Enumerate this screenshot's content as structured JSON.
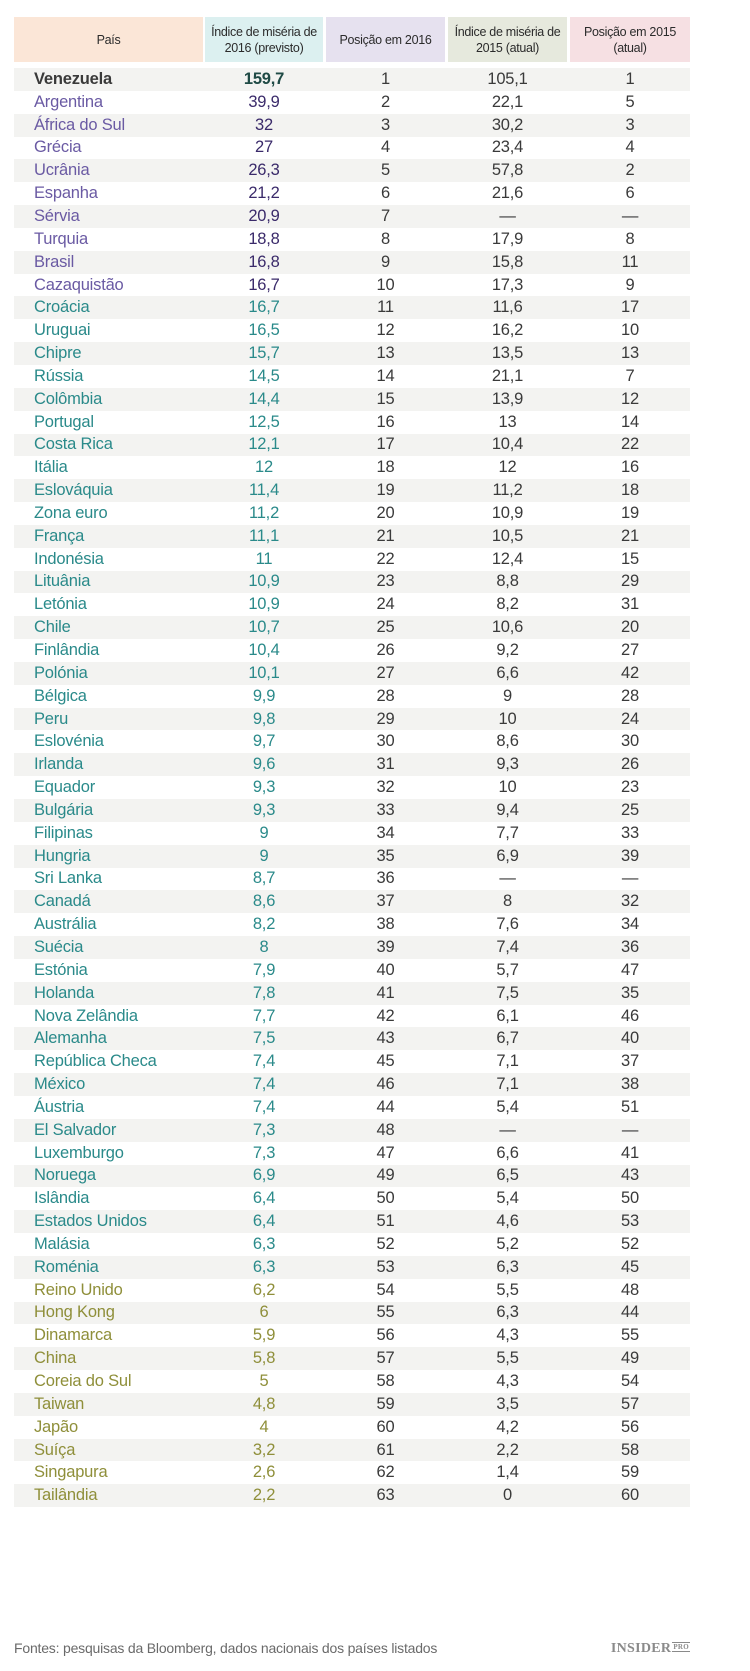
{
  "header": {
    "columns": [
      {
        "label": "País",
        "bg": "#fbe6d7"
      },
      {
        "label": "Índice de miséria de 2016 (previsto)",
        "bg": "#dcf0f0"
      },
      {
        "label": "Posição em 2016",
        "bg": "#e6e1ef"
      },
      {
        "label": "Índice de miséria de 2015 (atual)",
        "bg": "#e6e9dd"
      },
      {
        "label": "Posição em 2015 (atual)",
        "bg": "#f6e0e3"
      }
    ]
  },
  "colors": {
    "venezuela": "#3a3a3a",
    "venezuela_value": "#1f4a45",
    "purple_name": "#6a5aa3",
    "purple_value": "#3a2a6a",
    "teal": "#2a8a8a",
    "olive": "#8f8f3a",
    "neutral": "#3a3a3a"
  },
  "rows": [
    {
      "country": "Venezuela",
      "idx2016": "159,7",
      "pos2016": "1",
      "idx2015": "105,1",
      "pos2015": "1",
      "group": "top"
    },
    {
      "country": "Argentina",
      "idx2016": "39,9",
      "pos2016": "2",
      "idx2015": "22,1",
      "pos2015": "5",
      "group": "purple"
    },
    {
      "country": "África do Sul",
      "idx2016": "32",
      "pos2016": "3",
      "idx2015": "30,2",
      "pos2015": "3",
      "group": "purple"
    },
    {
      "country": "Grécia",
      "idx2016": "27",
      "pos2016": "4",
      "idx2015": "23,4",
      "pos2015": "4",
      "group": "purple"
    },
    {
      "country": "Ucrânia",
      "idx2016": "26,3",
      "pos2016": "5",
      "idx2015": "57,8",
      "pos2015": "2",
      "group": "purple"
    },
    {
      "country": "Espanha",
      "idx2016": "21,2",
      "pos2016": "6",
      "idx2015": "21,6",
      "pos2015": "6",
      "group": "purple"
    },
    {
      "country": "Sérvia",
      "idx2016": "20,9",
      "pos2016": "7",
      "idx2015": "—",
      "pos2015": "—",
      "group": "purple"
    },
    {
      "country": "Turquia",
      "idx2016": "18,8",
      "pos2016": "8",
      "idx2015": "17,9",
      "pos2015": "8",
      "group": "purple"
    },
    {
      "country": "Brasil",
      "idx2016": "16,8",
      "pos2016": "9",
      "idx2015": "15,8",
      "pos2015": "11",
      "group": "purple"
    },
    {
      "country": "Cazaquistão",
      "idx2016": "16,7",
      "pos2016": "10",
      "idx2015": "17,3",
      "pos2015": "9",
      "group": "purple"
    },
    {
      "country": "Croácia",
      "idx2016": "16,7",
      "pos2016": "11",
      "idx2015": "11,6",
      "pos2015": "17",
      "group": "teal"
    },
    {
      "country": "Uruguai",
      "idx2016": "16,5",
      "pos2016": "12",
      "idx2015": "16,2",
      "pos2015": "10",
      "group": "teal"
    },
    {
      "country": "Chipre",
      "idx2016": "15,7",
      "pos2016": "13",
      "idx2015": "13,5",
      "pos2015": "13",
      "group": "teal"
    },
    {
      "country": "Rússia",
      "idx2016": "14,5",
      "pos2016": "14",
      "idx2015": "21,1",
      "pos2015": "7",
      "group": "teal"
    },
    {
      "country": "Colômbia",
      "idx2016": "14,4",
      "pos2016": "15",
      "idx2015": "13,9",
      "pos2015": "12",
      "group": "teal"
    },
    {
      "country": "Portugal",
      "idx2016": "12,5",
      "pos2016": "16",
      "idx2015": "13",
      "pos2015": "14",
      "group": "teal"
    },
    {
      "country": "Costa Rica",
      "idx2016": "12,1",
      "pos2016": "17",
      "idx2015": "10,4",
      "pos2015": "22",
      "group": "teal"
    },
    {
      "country": "Itália",
      "idx2016": "12",
      "pos2016": "18",
      "idx2015": "12",
      "pos2015": "16",
      "group": "teal"
    },
    {
      "country": "Eslováquia",
      "idx2016": "11,4",
      "pos2016": "19",
      "idx2015": "11,2",
      "pos2015": "18",
      "group": "teal"
    },
    {
      "country": "Zona euro",
      "idx2016": "11,2",
      "pos2016": "20",
      "idx2015": "10,9",
      "pos2015": "19",
      "group": "teal"
    },
    {
      "country": "França",
      "idx2016": "11,1",
      "pos2016": "21",
      "idx2015": "10,5",
      "pos2015": "21",
      "group": "teal"
    },
    {
      "country": "Indonésia",
      "idx2016": "11",
      "pos2016": "22",
      "idx2015": "12,4",
      "pos2015": "15",
      "group": "teal"
    },
    {
      "country": "Lituânia",
      "idx2016": "10,9",
      "pos2016": "23",
      "idx2015": "8,8",
      "pos2015": "29",
      "group": "teal"
    },
    {
      "country": "Letónia",
      "idx2016": "10,9",
      "pos2016": "24",
      "idx2015": "8,2",
      "pos2015": "31",
      "group": "teal"
    },
    {
      "country": "Chile",
      "idx2016": "10,7",
      "pos2016": "25",
      "idx2015": "10,6",
      "pos2015": "20",
      "group": "teal"
    },
    {
      "country": "Finlândia",
      "idx2016": "10,4",
      "pos2016": "26",
      "idx2015": "9,2",
      "pos2015": "27",
      "group": "teal"
    },
    {
      "country": "Polónia",
      "idx2016": "10,1",
      "pos2016": "27",
      "idx2015": "6,6",
      "pos2015": "42",
      "group": "teal"
    },
    {
      "country": "Bélgica",
      "idx2016": "9,9",
      "pos2016": "28",
      "idx2015": "9",
      "pos2015": "28",
      "group": "teal"
    },
    {
      "country": "Peru",
      "idx2016": "9,8",
      "pos2016": "29",
      "idx2015": "10",
      "pos2015": "24",
      "group": "teal"
    },
    {
      "country": "Eslovénia",
      "idx2016": "9,7",
      "pos2016": "30",
      "idx2015": "8,6",
      "pos2015": "30",
      "group": "teal"
    },
    {
      "country": "Irlanda",
      "idx2016": "9,6",
      "pos2016": "31",
      "idx2015": "9,3",
      "pos2015": "26",
      "group": "teal"
    },
    {
      "country": "Equador",
      "idx2016": "9,3",
      "pos2016": "32",
      "idx2015": "10",
      "pos2015": "23",
      "group": "teal"
    },
    {
      "country": "Bulgária",
      "idx2016": "9,3",
      "pos2016": "33",
      "idx2015": "9,4",
      "pos2015": "25",
      "group": "teal"
    },
    {
      "country": "Filipinas",
      "idx2016": "9",
      "pos2016": "34",
      "idx2015": "7,7",
      "pos2015": "33",
      "group": "teal"
    },
    {
      "country": "Hungria",
      "idx2016": "9",
      "pos2016": "35",
      "idx2015": "6,9",
      "pos2015": "39",
      "group": "teal"
    },
    {
      "country": "Sri Lanka",
      "idx2016": "8,7",
      "pos2016": "36",
      "idx2015": "—",
      "pos2015": "—",
      "group": "teal"
    },
    {
      "country": "Canadá",
      "idx2016": "8,6",
      "pos2016": "37",
      "idx2015": "8",
      "pos2015": "32",
      "group": "teal"
    },
    {
      "country": "Austrália",
      "idx2016": "8,2",
      "pos2016": "38",
      "idx2015": "7,6",
      "pos2015": "34",
      "group": "teal"
    },
    {
      "country": "Suécia",
      "idx2016": "8",
      "pos2016": "39",
      "idx2015": "7,4",
      "pos2015": "36",
      "group": "teal"
    },
    {
      "country": "Estónia",
      "idx2016": "7,9",
      "pos2016": "40",
      "idx2015": "5,7",
      "pos2015": "47",
      "group": "teal"
    },
    {
      "country": "Holanda",
      "idx2016": "7,8",
      "pos2016": "41",
      "idx2015": "7,5",
      "pos2015": "35",
      "group": "teal"
    },
    {
      "country": "Nova Zelândia",
      "idx2016": "7,7",
      "pos2016": "42",
      "idx2015": "6,1",
      "pos2015": "46",
      "group": "teal"
    },
    {
      "country": "Alemanha",
      "idx2016": "7,5",
      "pos2016": "43",
      "idx2015": "6,7",
      "pos2015": "40",
      "group": "teal"
    },
    {
      "country": "República Checa",
      "idx2016": "7,4",
      "pos2016": "45",
      "idx2015": "7,1",
      "pos2015": "37",
      "group": "teal"
    },
    {
      "country": "México",
      "idx2016": "7,4",
      "pos2016": "46",
      "idx2015": "7,1",
      "pos2015": "38",
      "group": "teal"
    },
    {
      "country": "Áustria",
      "idx2016": "7,4",
      "pos2016": "44",
      "idx2015": "5,4",
      "pos2015": "51",
      "group": "teal"
    },
    {
      "country": "El Salvador",
      "idx2016": "7,3",
      "pos2016": "48",
      "idx2015": "—",
      "pos2015": "—",
      "group": "teal"
    },
    {
      "country": "Luxemburgo",
      "idx2016": "7,3",
      "pos2016": "47",
      "idx2015": "6,6",
      "pos2015": "41",
      "group": "teal"
    },
    {
      "country": "Noruega",
      "idx2016": "6,9",
      "pos2016": "49",
      "idx2015": "6,5",
      "pos2015": "43",
      "group": "teal"
    },
    {
      "country": "Islândia",
      "idx2016": "6,4",
      "pos2016": "50",
      "idx2015": "5,4",
      "pos2015": "50",
      "group": "teal"
    },
    {
      "country": "Estados Unidos",
      "idx2016": "6,4",
      "pos2016": "51",
      "idx2015": "4,6",
      "pos2015": "53",
      "group": "teal"
    },
    {
      "country": "Malásia",
      "idx2016": "6,3",
      "pos2016": "52",
      "idx2015": "5,2",
      "pos2015": "52",
      "group": "teal"
    },
    {
      "country": "Roménia",
      "idx2016": "6,3",
      "pos2016": "53",
      "idx2015": "6,3",
      "pos2015": "45",
      "group": "teal"
    },
    {
      "country": "Reino Unido",
      "idx2016": "6,2",
      "pos2016": "54",
      "idx2015": "5,5",
      "pos2015": "48",
      "group": "olive"
    },
    {
      "country": "Hong Kong",
      "idx2016": "6",
      "pos2016": "55",
      "idx2015": "6,3",
      "pos2015": "44",
      "group": "olive"
    },
    {
      "country": "Dinamarca",
      "idx2016": "5,9",
      "pos2016": "56",
      "idx2015": "4,3",
      "pos2015": "55",
      "group": "olive"
    },
    {
      "country": "China",
      "idx2016": "5,8",
      "pos2016": "57",
      "idx2015": "5,5",
      "pos2015": "49",
      "group": "olive"
    },
    {
      "country": "Coreia do Sul",
      "idx2016": "5",
      "pos2016": "58",
      "idx2015": "4,3",
      "pos2015": "54",
      "group": "olive"
    },
    {
      "country": "Taiwan",
      "idx2016": "4,8",
      "pos2016": "59",
      "idx2015": "3,5",
      "pos2015": "57",
      "group": "olive"
    },
    {
      "country": "Japão",
      "idx2016": "4",
      "pos2016": "60",
      "idx2015": "4,2",
      "pos2015": "56",
      "group": "olive"
    },
    {
      "country": "Suíça",
      "idx2016": "3,2",
      "pos2016": "61",
      "idx2015": "2,2",
      "pos2015": "58",
      "group": "olive"
    },
    {
      "country": "Singapura",
      "idx2016": "2,6",
      "pos2016": "62",
      "idx2015": "1,4",
      "pos2015": "59",
      "group": "olive"
    },
    {
      "country": "Tailândia",
      "idx2016": "2,2",
      "pos2016": "63",
      "idx2015": "0",
      "pos2015": "60",
      "group": "olive"
    }
  ],
  "footer": {
    "source": "Fontes: pesquisas da Bloomberg, dados nacionais dos países listados",
    "logo_main": "INSIDER",
    "logo_sub": "PRO"
  }
}
